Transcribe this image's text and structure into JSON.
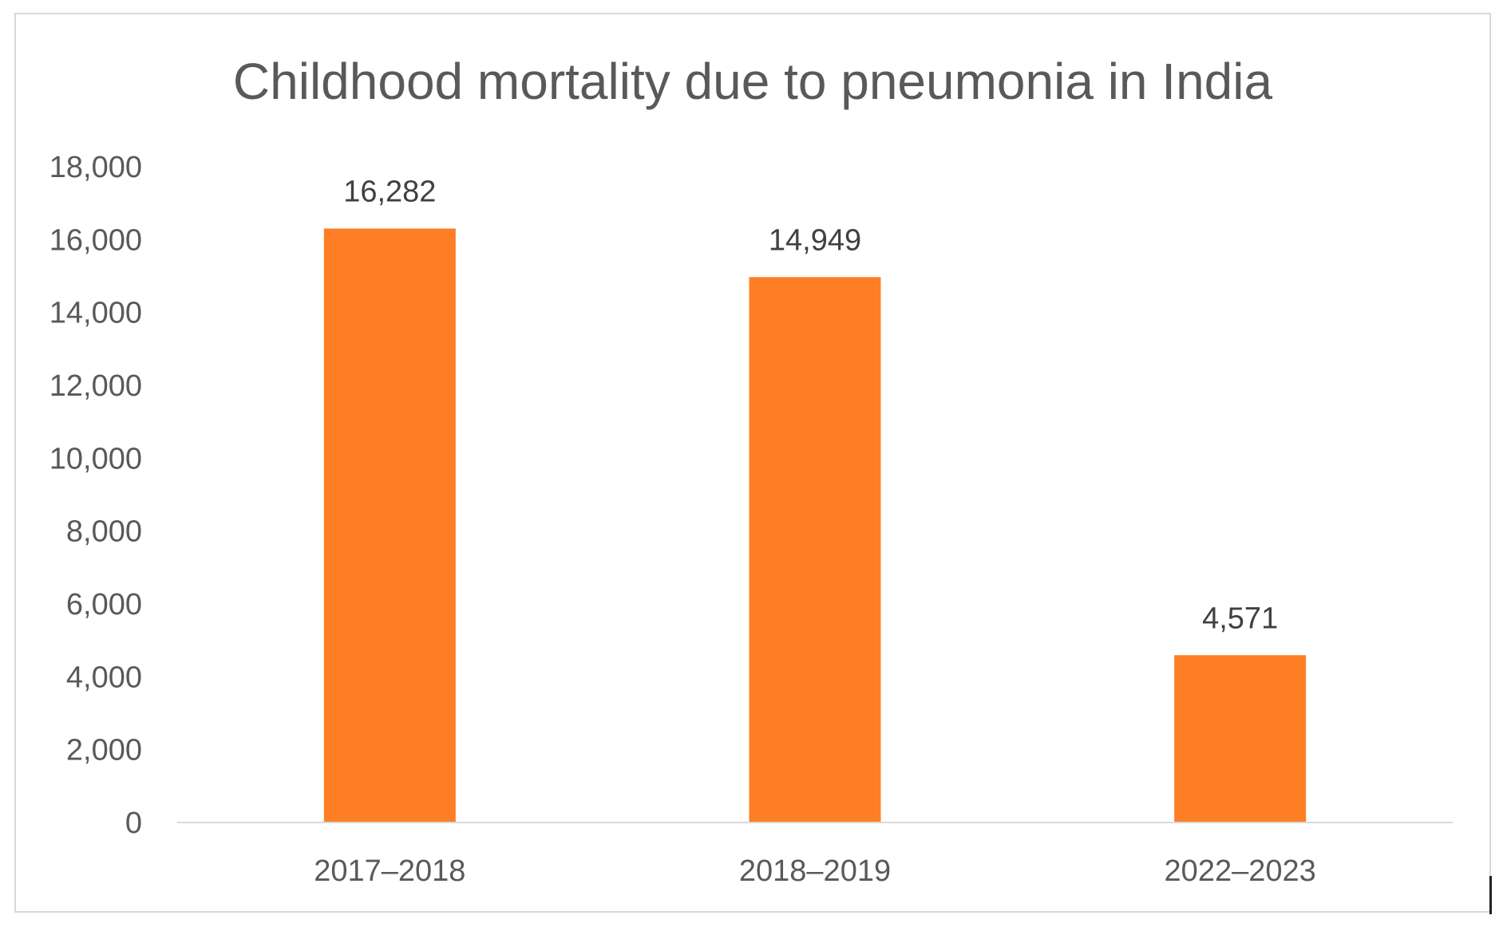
{
  "chart_data": {
    "type": "bar",
    "title": "Childhood mortality due to pneumonia in India",
    "categories": [
      "2017–2018",
      "2018–2019",
      "2022–2023"
    ],
    "values": [
      16282,
      14949,
      4571
    ],
    "data_labels": [
      "16,282",
      "14,949",
      "4,571"
    ],
    "ylim": [
      0,
      18000
    ],
    "yticks": [
      0,
      2000,
      4000,
      6000,
      8000,
      10000,
      12000,
      14000,
      16000,
      18000
    ],
    "ytick_labels": [
      "0",
      "2,000",
      "4,000",
      "6,000",
      "8,000",
      "10,000",
      "12,000",
      "14,000",
      "16,000",
      "18,000"
    ],
    "grid": false,
    "legend": "none",
    "colors": {
      "bar": "#fd7e25",
      "axis": "#d9d9d9"
    }
  }
}
